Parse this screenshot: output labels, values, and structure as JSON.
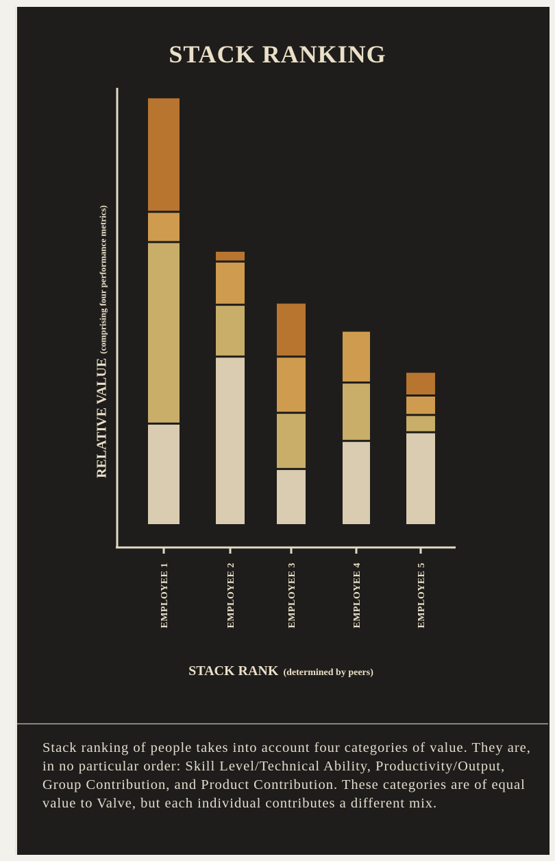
{
  "chart_data": {
    "type": "bar",
    "stacked": true,
    "title": "STACK RANKING",
    "ylabel": "RELATIVE VALUE",
    "ylabel_sub": "(comprising four performance metrics)",
    "xlabel": "STACK RANK",
    "xlabel_sub": "(determined by peers)",
    "categories": [
      "EMPLOYEE 1",
      "EMPLOYEE 2",
      "EMPLOYEE 3",
      "EMPLOYEE 4",
      "EMPLOYEE 5"
    ],
    "ylim": [
      0,
      100
    ],
    "grid": false,
    "legend": "none",
    "series": [
      {
        "values": [
          23.5,
          39.0,
          13.0,
          19.5,
          21.5
        ],
        "color": "#d9ccb1"
      },
      {
        "values": [
          42.0,
          12.0,
          13.0,
          13.5,
          4.0
        ],
        "color": "#c8ae69"
      },
      {
        "values": [
          7.0,
          10.0,
          13.0,
          12.0,
          4.5
        ],
        "color": "#cf9b4e"
      },
      {
        "values": [
          26.5,
          2.5,
          12.5,
          0,
          5.5
        ],
        "color": "#b87530"
      }
    ]
  },
  "caption": "Stack ranking of people takes into account four categories of value. They are, in no particular order: Skill Level/Technical Ability, Productivity/Output, Group Contribution, and Product Contribution. These categories are of equal value to Valve, but each individual contributes a different mix.",
  "colors": {
    "background": "#1e1d1b",
    "text": "#eadfc8",
    "axis": "#e2d9c5"
  }
}
